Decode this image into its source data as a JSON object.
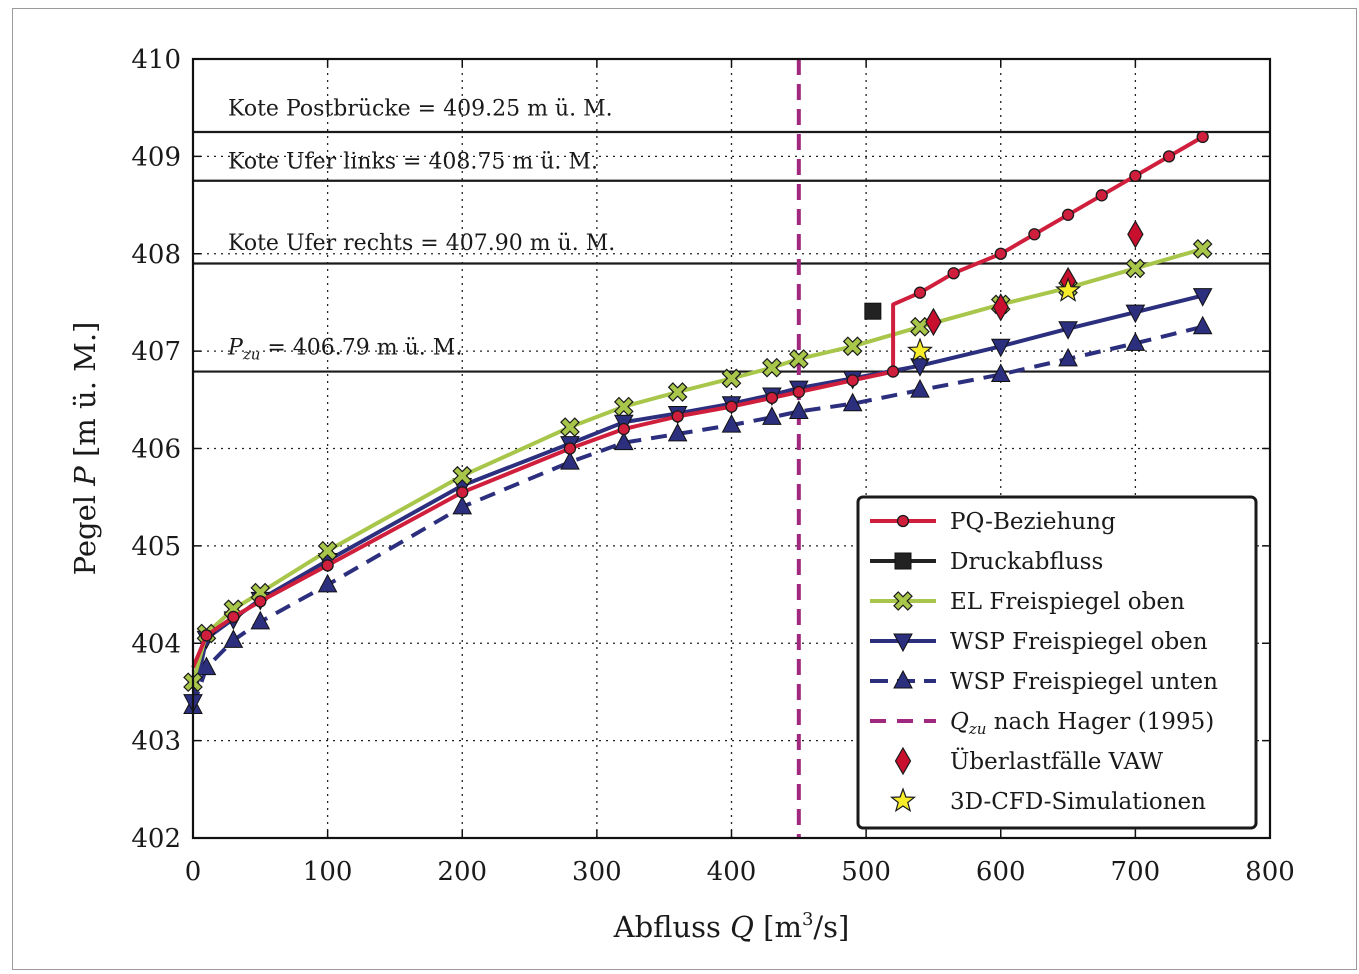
{
  "chart_data": {
    "type": "line",
    "title": "",
    "xlabel_parts": {
      "pre": "Abfluss ",
      "var": "Q",
      "post": " [m",
      "sup": "3",
      "tail": "/s]"
    },
    "ylabel_parts": {
      "pre": "Pegel ",
      "var": "P",
      "post": " [m ü. M.]"
    },
    "xlim": [
      0,
      800
    ],
    "ylim": [
      402,
      410
    ],
    "xticks": [
      0,
      100,
      200,
      300,
      400,
      500,
      600,
      700,
      800
    ],
    "yticks": [
      402,
      403,
      404,
      405,
      406,
      407,
      408,
      409,
      410
    ],
    "grid": true,
    "legend_position": "lower-right",
    "reference_lines": [
      {
        "y": 409.25,
        "label": "Kote Postbrücke = 409.25 m ü. M.",
        "label_y": 409.5
      },
      {
        "y": 408.75,
        "label": "Kote Ufer links = 408.75 m ü. M.",
        "label_y": 408.96
      },
      {
        "y": 407.9,
        "label": "Kote Ufer rechts = 407.90 m ü. M.",
        "label_y": 408.12
      },
      {
        "y": 406.79,
        "label_var": "P",
        "label_sub": "zu",
        "label_rest": " = 406.79 m ü. M.",
        "label_y": 407.05
      }
    ],
    "vertical_line": {
      "x": 450,
      "color": "#a0287f"
    },
    "series": [
      {
        "name": "PQ-Beziehung",
        "color": "#d01f3c",
        "style": "solid",
        "marker": "circle",
        "x": [
          0,
          10,
          30,
          50,
          100,
          200,
          280,
          320,
          360,
          400,
          430,
          450,
          490,
          520,
          520,
          540,
          565,
          600,
          625,
          650,
          675,
          700,
          725,
          750
        ],
        "y": [
          403.75,
          404.08,
          404.27,
          404.43,
          404.8,
          405.55,
          406.0,
          406.2,
          406.33,
          406.43,
          406.52,
          406.58,
          406.7,
          406.79,
          407.48,
          407.6,
          407.8,
          408.0,
          408.2,
          408.4,
          408.6,
          408.8,
          409.0,
          409.2
        ]
      },
      {
        "name": "Druckabfluss",
        "color": "#222222",
        "style": "solid",
        "marker": "square",
        "x": [
          505
        ],
        "y": [
          407.41
        ]
      },
      {
        "name": "EL Freispiegel oben",
        "color": "#a8c64a",
        "style": "solid",
        "marker": "xcross",
        "x": [
          0,
          10,
          30,
          50,
          100,
          200,
          280,
          320,
          360,
          400,
          430,
          450,
          490,
          540,
          600,
          650,
          700,
          750
        ],
        "y": [
          403.6,
          404.1,
          404.35,
          404.52,
          404.95,
          405.72,
          406.22,
          406.43,
          406.58,
          406.72,
          406.83,
          406.92,
          407.05,
          407.25,
          407.48,
          407.65,
          407.85,
          408.05
        ]
      },
      {
        "name": "WSP Freispiegel oben",
        "color": "#2c2f7e",
        "style": "solid",
        "marker": "tri-down",
        "x": [
          0,
          10,
          30,
          50,
          100,
          200,
          280,
          320,
          360,
          400,
          430,
          450,
          490,
          540,
          600,
          650,
          700,
          750
        ],
        "y": [
          403.4,
          404.05,
          404.25,
          404.45,
          404.85,
          405.62,
          406.05,
          406.27,
          406.36,
          406.46,
          406.55,
          406.62,
          406.72,
          406.85,
          407.05,
          407.23,
          407.4,
          407.57
        ]
      },
      {
        "name": "WSP Freispiegel unten",
        "color": "#2c2f7e",
        "style": "dashed",
        "marker": "tri-up",
        "x": [
          0,
          10,
          30,
          50,
          100,
          200,
          280,
          320,
          360,
          400,
          430,
          450,
          490,
          540,
          600,
          650,
          700,
          750
        ],
        "y": [
          403.35,
          403.75,
          404.03,
          404.22,
          404.6,
          405.4,
          405.86,
          406.06,
          406.15,
          406.24,
          406.32,
          406.38,
          406.46,
          406.6,
          406.76,
          406.92,
          407.08,
          407.25
        ]
      },
      {
        "name_var": "Q",
        "name_sub": "zu",
        "name_rest": " nach Hager (1995)",
        "color": "#a0287f",
        "style": "dashed",
        "marker": "none"
      },
      {
        "name": "Überlastfälle VAW",
        "color": "#c8102e",
        "style": "none",
        "marker": "diamond",
        "x": [
          550,
          600,
          650,
          700
        ],
        "y": [
          407.3,
          407.45,
          407.72,
          408.2
        ]
      },
      {
        "name": "3D-CFD-Simulationen",
        "color": "#f6ec2a",
        "style": "none",
        "marker": "star",
        "x": [
          540,
          650
        ],
        "y": [
          407.0,
          407.62
        ]
      }
    ]
  }
}
